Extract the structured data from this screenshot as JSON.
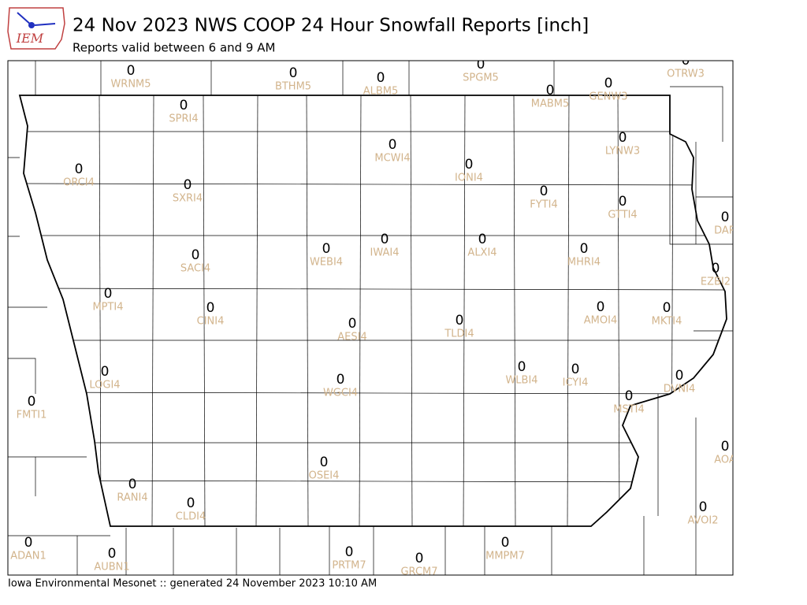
{
  "header": {
    "logo_text": "IEM",
    "title": "24 Nov 2023 NWS COOP 24 Hour Snowfall Reports [inch]",
    "subtitle": "Reports valid between 6 and 9 AM"
  },
  "stations": [
    {
      "id": "WRNM5",
      "value": 0
    },
    {
      "id": "BTHM5",
      "value": 0
    },
    {
      "id": "ALBM5",
      "value": 0
    },
    {
      "id": "SPGM5",
      "value": 0
    },
    {
      "id": "OTRW3",
      "value": 0
    },
    {
      "id": "MABM5",
      "value": 0
    },
    {
      "id": "GENW3",
      "value": 0
    },
    {
      "id": "SPRI4",
      "value": 0
    },
    {
      "id": "LYNW3",
      "value": 0
    },
    {
      "id": "ORCI4",
      "value": 0
    },
    {
      "id": "MCWI4",
      "value": 0
    },
    {
      "id": "IONI4",
      "value": 0
    },
    {
      "id": "SXRI4",
      "value": 0
    },
    {
      "id": "FYTI4",
      "value": 0
    },
    {
      "id": "GTTI4",
      "value": 0
    },
    {
      "id": "DAR",
      "value": 0
    },
    {
      "id": "WEBI4",
      "value": 0
    },
    {
      "id": "IWAI4",
      "value": 0
    },
    {
      "id": "ALXI4",
      "value": 0
    },
    {
      "id": "SACI4",
      "value": 0
    },
    {
      "id": "MHRI4",
      "value": 0
    },
    {
      "id": "EZBI2",
      "value": 0
    },
    {
      "id": "MPTI4",
      "value": 0
    },
    {
      "id": "CINI4",
      "value": 0
    },
    {
      "id": "AMOI4",
      "value": 0
    },
    {
      "id": "MKTI4",
      "value": 0
    },
    {
      "id": "AESI4",
      "value": 0
    },
    {
      "id": "TLDI4",
      "value": 0
    },
    {
      "id": "LOGI4",
      "value": 0
    },
    {
      "id": "WLBI4",
      "value": 0
    },
    {
      "id": "ICYI4",
      "value": 0
    },
    {
      "id": "WGCI4",
      "value": 0
    },
    {
      "id": "DVNI4",
      "value": 0
    },
    {
      "id": "FMTI1",
      "value": 0
    },
    {
      "id": "MSTI4",
      "value": 0
    },
    {
      "id": "AOA",
      "value": 0
    },
    {
      "id": "OSEI4",
      "value": 0
    },
    {
      "id": "RANI4",
      "value": 0
    },
    {
      "id": "CLDI4",
      "value": 0
    },
    {
      "id": "AVOI2",
      "value": 0
    },
    {
      "id": "ADAN1",
      "value": 0
    },
    {
      "id": "AUBN1",
      "value": 0
    },
    {
      "id": "PRTM7",
      "value": 0
    },
    {
      "id": "MMPM7",
      "value": 0
    },
    {
      "id": "GRCM7",
      "value": 0
    }
  ],
  "footer": "Iowa Environmental Mesonet :: generated 24 November 2023 10:10 AM"
}
